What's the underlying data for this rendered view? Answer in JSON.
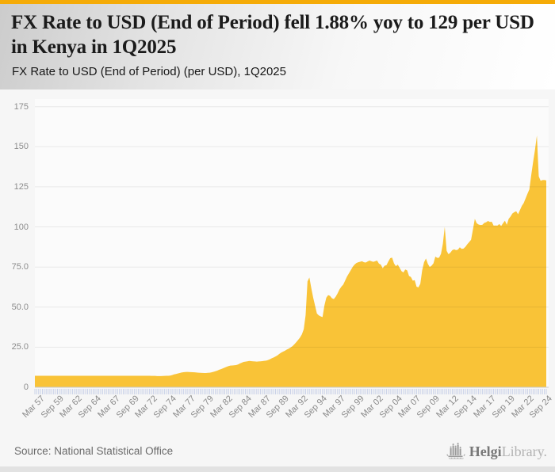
{
  "header": {
    "title": "FX Rate to USD (End of Period) fell 1.88% yoy to 129 per USD in Kenya in 1Q2025",
    "subtitle": "FX Rate to USD (End of Period) (per USD), 1Q2025"
  },
  "footer": {
    "source": "Source: National Statistical Office",
    "logo_text_bold": "Helgi",
    "logo_text_light": "Library."
  },
  "colors": {
    "accent_topbar": "#f5ab07",
    "area_fill": "#f9c337",
    "tick_comb": "#c9d1e8",
    "baseline": "#c9c9c9",
    "plot_bg": "#fbfbfb",
    "axis_text": "#8c8c8c"
  },
  "chart_data": {
    "type": "area",
    "title": "FX Rate to USD (End of Period) (per USD), 1Q2025",
    "country": "Kenya",
    "unit": "per USD",
    "latest_value": 129,
    "yoy_change_pct": -1.88,
    "frequency": "quarterly",
    "start_period": "Mar 1957",
    "end_period": "Mar 2025",
    "ylim": [
      0,
      175
    ],
    "grid": true,
    "legend": false,
    "yticks": [
      "175",
      "150",
      "125",
      "100",
      "75.0",
      "50.0",
      "25.0",
      "0"
    ],
    "ytick_values": [
      175,
      150,
      125,
      100,
      75,
      50,
      25,
      0
    ],
    "xtick_every_n_points": 10,
    "xtick_labels": [
      "Mar 57",
      "Sep 59",
      "Mar 62",
      "Sep 64",
      "Mar 67",
      "Sep 69",
      "Mar 72",
      "Sep 74",
      "Mar 77",
      "Sep 79",
      "Mar 82",
      "Sep 84",
      "Mar 87",
      "Sep 89",
      "Mar 92",
      "Sep 94",
      "Mar 97",
      "Sep 99",
      "Mar 02",
      "Sep 04",
      "Mar 07",
      "Sep 09",
      "Mar 12",
      "Sep 14",
      "Mar 17",
      "Sep 19",
      "Mar 22",
      "Sep 24"
    ],
    "values": [
      7.14,
      7.14,
      7.14,
      7.14,
      7.14,
      7.14,
      7.14,
      7.14,
      7.14,
      7.14,
      7.14,
      7.14,
      7.14,
      7.14,
      7.14,
      7.14,
      7.14,
      7.14,
      7.14,
      7.14,
      7.14,
      7.14,
      7.14,
      7.14,
      7.14,
      7.14,
      7.14,
      7.14,
      7.14,
      7.14,
      7.14,
      7.14,
      7.14,
      7.14,
      7.14,
      7.14,
      7.14,
      7.14,
      7.14,
      7.14,
      7.14,
      7.14,
      7.14,
      7.14,
      7.14,
      7.14,
      7.14,
      7.14,
      7.14,
      7.14,
      7.14,
      7.14,
      7.14,
      7.14,
      7.14,
      7.14,
      7.14,
      7.14,
      7.14,
      7.14,
      7.14,
      7.14,
      7.1,
      7.1,
      7.1,
      7.0,
      6.95,
      7.0,
      7.05,
      7.1,
      7.14,
      7.14,
      7.3,
      7.6,
      8.0,
      8.3,
      8.6,
      8.9,
      9.2,
      9.4,
      9.5,
      9.55,
      9.5,
      9.45,
      9.4,
      9.3,
      9.2,
      9.1,
      9.0,
      8.95,
      8.9,
      8.9,
      9.0,
      9.1,
      9.3,
      9.6,
      10.0,
      10.4,
      10.9,
      11.3,
      11.8,
      12.3,
      12.8,
      13.2,
      13.5,
      13.6,
      13.7,
      13.8,
      14.2,
      14.8,
      15.3,
      15.8,
      16.0,
      16.2,
      16.4,
      16.3,
      16.2,
      16.1,
      16.0,
      16.1,
      16.2,
      16.3,
      16.5,
      16.6,
      17.0,
      17.5,
      18.1,
      18.6,
      19.2,
      19.9,
      20.8,
      21.6,
      22.2,
      22.8,
      23.5,
      24.1,
      24.8,
      25.6,
      26.8,
      28.1,
      29.5,
      31.0,
      33.0,
      36.2,
      45.0,
      66.0,
      68.5,
      62.0,
      56.0,
      51.0,
      46.0,
      44.8,
      44.2,
      43.8,
      51.0,
      55.9,
      57.5,
      57.0,
      55.5,
      55.0,
      56.5,
      58.5,
      61.0,
      62.7,
      64.0,
      66.5,
      69.0,
      71.0,
      73.0,
      75.0,
      76.5,
      77.5,
      78.0,
      78.3,
      78.6,
      78.0,
      77.8,
      78.5,
      79.0,
      78.6,
      78.2,
      78.6,
      79.0,
      77.1,
      76.5,
      74.2,
      75.8,
      76.1,
      78.5,
      80.5,
      80.9,
      77.3,
      75.5,
      76.5,
      74.5,
      72.4,
      71.6,
      73.5,
      72.9,
      69.4,
      68.8,
      66.5,
      66.8,
      62.7,
      62.3,
      64.5,
      73.0,
      78.0,
      80.3,
      77.0,
      75.0,
      75.8,
      77.3,
      81.5,
      80.7,
      80.8,
      83.2,
      89.5,
      100.0,
      85.1,
      83.0,
      84.0,
      85.5,
      86.0,
      85.5,
      85.8,
      87.3,
      86.3,
      86.5,
      87.6,
      89.2,
      90.6,
      92.0,
      98.5,
      105.0,
      102.3,
      101.5,
      101.2,
      101.3,
      102.5,
      102.9,
      103.7,
      103.1,
      103.2,
      100.8,
      100.9,
      100.8,
      101.8,
      100.6,
      102.3,
      103.9,
      101.3,
      105.0,
      106.5,
      108.4,
      109.2,
      109.8,
      107.9,
      110.5,
      113.1,
      114.9,
      117.8,
      120.7,
      123.4,
      132.3,
      140.5,
      148.1,
      157.0,
      131.5,
      128.8,
      129.2,
      129.3,
      129.0
    ]
  }
}
